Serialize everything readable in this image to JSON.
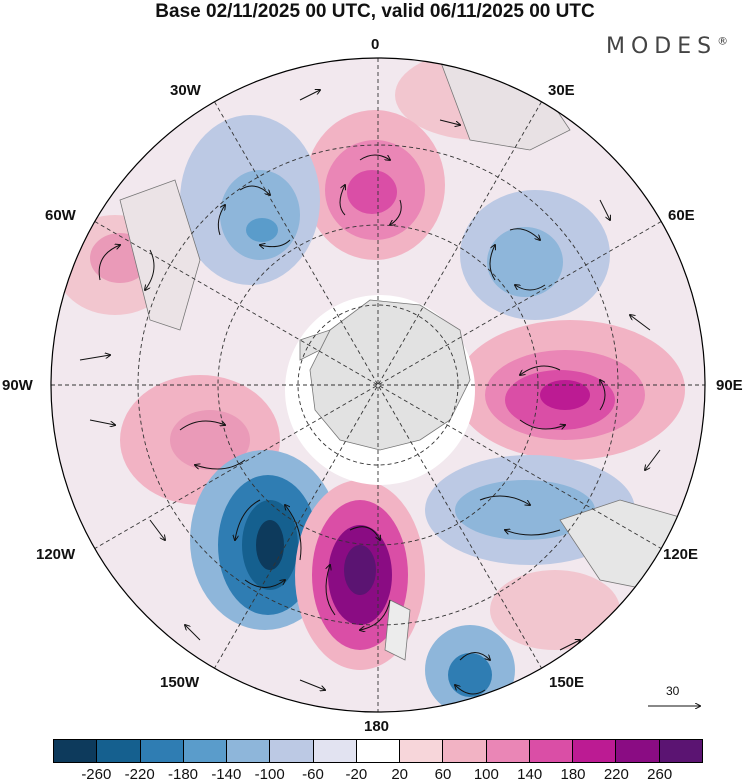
{
  "title": "Base 02/11/2025 00 UTC, valid 06/11/2025 00 UTC",
  "brand": "MODES",
  "brand_mark": "®",
  "longitude_labels": {
    "lon_0": "0",
    "lon_30e": "30E",
    "lon_60e": "60E",
    "lon_90e": "90E",
    "lon_120e": "120E",
    "lon_150e": "150E",
    "lon_180": "180",
    "lon_150w": "150W",
    "lon_120w": "120W",
    "lon_90w": "90W",
    "lon_60w": "60W",
    "lon_30w": "30W"
  },
  "reference_vector": {
    "label": "30"
  },
  "colorbar": {
    "ticks": [
      "-260",
      "-220",
      "-180",
      "-140",
      "-100",
      "-60",
      "-20",
      "20",
      "60",
      "100",
      "140",
      "180",
      "220",
      "260"
    ],
    "colors": [
      "#0d3a5c",
      "#15608f",
      "#2f7db3",
      "#5a9ccb",
      "#8eb6da",
      "#bcc9e4",
      "#e2e3f1",
      "#ffffff",
      "#f7d6da",
      "#f2b3c4",
      "#ea86b6",
      "#da4ea6",
      "#bc1b93",
      "#8a0c83",
      "#5b1472"
    ]
  },
  "colors": {
    "land": "#e2e2e2",
    "grid": "#333333",
    "border": "#000000"
  }
}
